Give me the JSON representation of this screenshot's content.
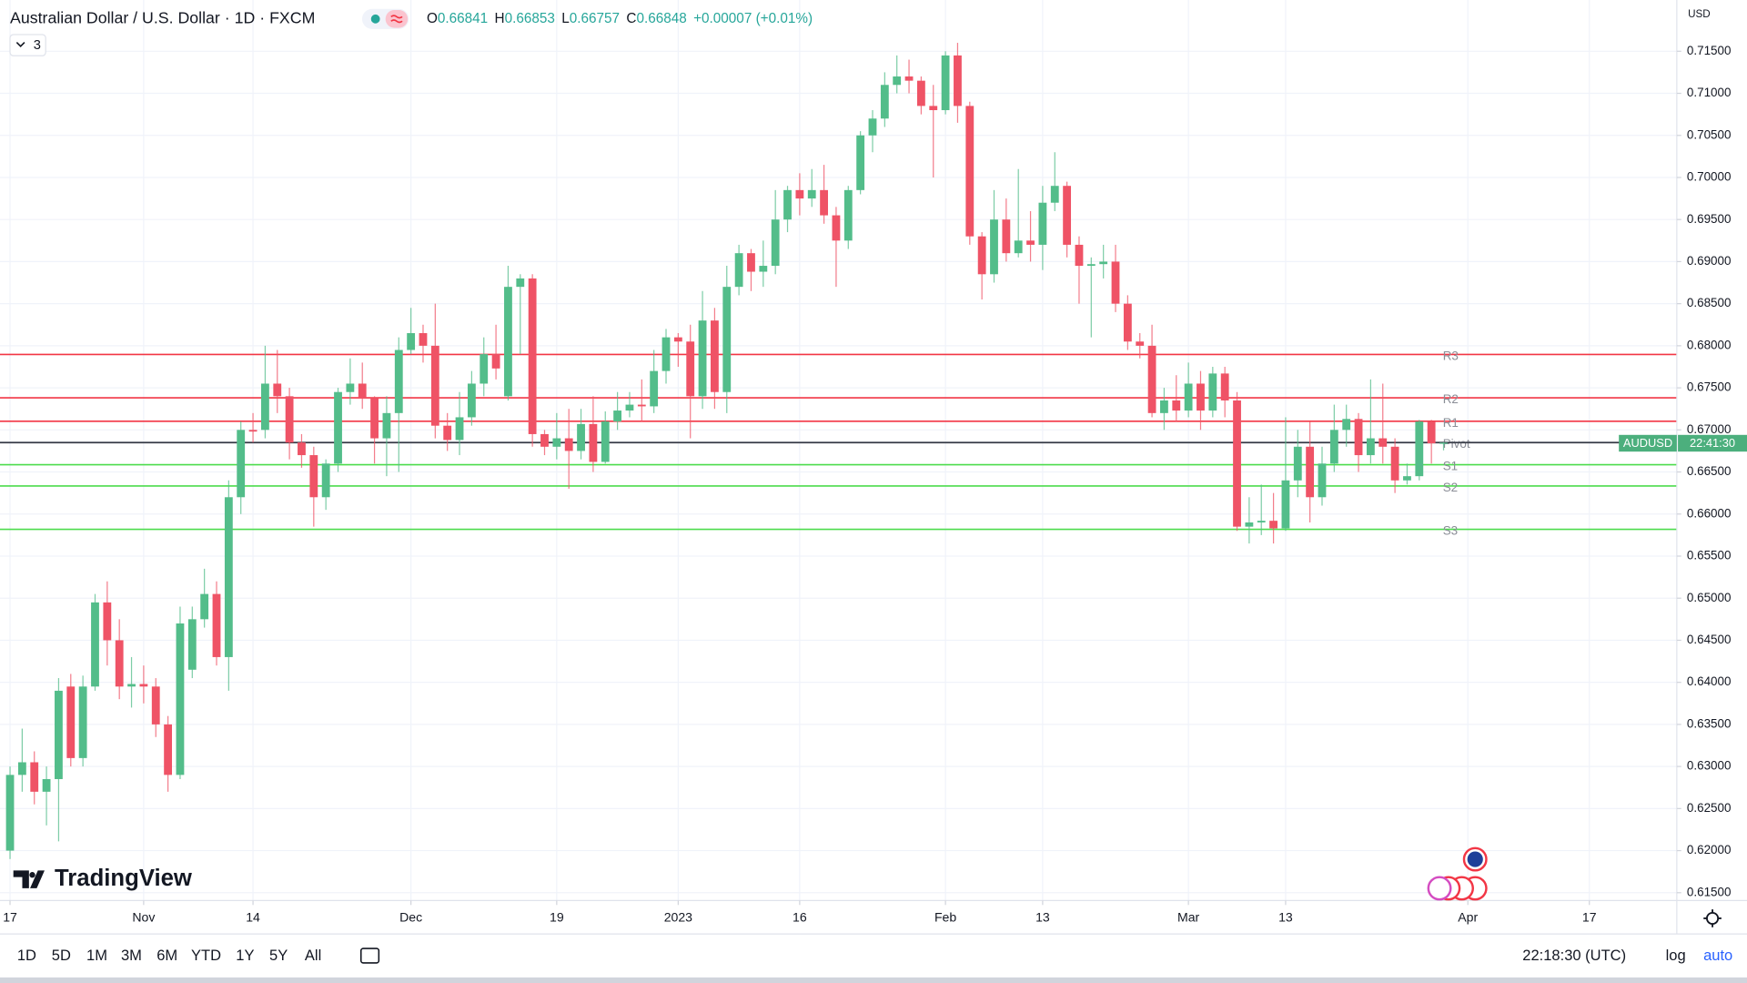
{
  "header": {
    "title": "Australian Dollar / U.S. Dollar · 1D · FXCM",
    "ohlc": [
      {
        "key": "O",
        "value": "0.66841"
      },
      {
        "key": "H",
        "value": "0.66853"
      },
      {
        "key": "L",
        "value": "0.66757"
      },
      {
        "key": "C",
        "value": "0.66848"
      }
    ],
    "change": "+0.00007 (+0.01%)",
    "indicators": "3"
  },
  "brand": "TradingView",
  "chart_data": {
    "type": "candlestick",
    "open": [
      0.62,
      0.629,
      0.6305,
      0.627,
      0.6285,
      0.6395,
      0.631,
      0.6395,
      0.6495,
      0.645,
      0.6395,
      0.6398,
      0.6395,
      0.635,
      0.629,
      0.6415,
      0.6475,
      0.6505,
      0.643,
      0.662,
      0.67,
      0.67,
      0.6755,
      0.674,
      0.6685,
      0.667,
      0.662,
      0.666,
      0.6745,
      0.6755,
      0.6738,
      0.669,
      0.672,
      0.6795,
      0.6815,
      0.68,
      0.6705,
      0.6688,
      0.6715,
      0.6755,
      0.679,
      0.674,
      0.687,
      0.688,
      0.6695,
      0.668,
      0.669,
      0.6675,
      0.6707,
      0.6662,
      0.671,
      0.6723,
      0.673,
      0.6728,
      0.677,
      0.681,
      0.6805,
      0.674,
      0.683,
      0.6745,
      0.687,
      0.691,
      0.6888,
      0.6895,
      0.695,
      0.6985,
      0.6975,
      0.6985,
      0.6955,
      0.6925,
      0.6985,
      0.705,
      0.707,
      0.711,
      0.712,
      0.7115,
      0.7085,
      0.708,
      0.7145,
      0.7085,
      0.693,
      0.6885,
      0.695,
      0.691,
      0.6925,
      0.692,
      0.697,
      0.699,
      0.692,
      0.6895,
      0.6897,
      0.69,
      0.685,
      0.6805,
      0.68,
      0.672,
      0.6735,
      0.6723,
      0.6755,
      0.6723,
      0.6767,
      0.6735,
      0.6585,
      0.659,
      0.6592,
      0.6583,
      0.664,
      0.668,
      0.662,
      0.666,
      0.67,
      0.6713,
      0.667,
      0.669,
      0.668,
      0.664,
      0.6645,
      0.671,
      0.66841
    ],
    "high": [
      0.63,
      0.6345,
      0.6318,
      0.63,
      0.6405,
      0.641,
      0.6408,
      0.6505,
      0.652,
      0.6475,
      0.643,
      0.642,
      0.6405,
      0.636,
      0.649,
      0.649,
      0.6535,
      0.652,
      0.664,
      0.671,
      0.672,
      0.68,
      0.6795,
      0.675,
      0.6695,
      0.668,
      0.6665,
      0.675,
      0.6785,
      0.678,
      0.674,
      0.674,
      0.681,
      0.6845,
      0.6825,
      0.685,
      0.672,
      0.6745,
      0.677,
      0.681,
      0.6825,
      0.6895,
      0.6885,
      0.6885,
      0.67,
      0.672,
      0.6725,
      0.6725,
      0.674,
      0.6722,
      0.6745,
      0.6745,
      0.676,
      0.6795,
      0.682,
      0.6815,
      0.6825,
      0.6865,
      0.6845,
      0.6895,
      0.692,
      0.6915,
      0.6925,
      0.6985,
      0.699,
      0.7005,
      0.701,
      0.7015,
      0.6965,
      0.699,
      0.7055,
      0.708,
      0.7125,
      0.7145,
      0.714,
      0.712,
      0.711,
      0.715,
      0.716,
      0.709,
      0.6935,
      0.6985,
      0.6975,
      0.701,
      0.696,
      0.699,
      0.703,
      0.6995,
      0.693,
      0.6905,
      0.692,
      0.692,
      0.686,
      0.6815,
      0.6825,
      0.675,
      0.6765,
      0.678,
      0.677,
      0.6775,
      0.6775,
      0.6745,
      0.662,
      0.6635,
      0.6625,
      0.6715,
      0.67,
      0.671,
      0.668,
      0.673,
      0.673,
      0.672,
      0.676,
      0.6755,
      0.669,
      0.666,
      0.6712,
      0.6712,
      0.66853
    ],
    "low": [
      0.619,
      0.627,
      0.6255,
      0.623,
      0.6211,
      0.63,
      0.63,
      0.639,
      0.642,
      0.638,
      0.637,
      0.6375,
      0.6335,
      0.627,
      0.6285,
      0.6405,
      0.6465,
      0.642,
      0.639,
      0.66,
      0.6685,
      0.669,
      0.672,
      0.6665,
      0.6655,
      0.6585,
      0.6605,
      0.665,
      0.673,
      0.6725,
      0.666,
      0.6645,
      0.665,
      0.679,
      0.678,
      0.669,
      0.6675,
      0.667,
      0.6705,
      0.674,
      0.676,
      0.6735,
      0.679,
      0.668,
      0.667,
      0.6665,
      0.663,
      0.6665,
      0.665,
      0.666,
      0.67,
      0.6715,
      0.671,
      0.672,
      0.6755,
      0.6775,
      0.669,
      0.6725,
      0.6725,
      0.672,
      0.686,
      0.6865,
      0.687,
      0.6885,
      0.6935,
      0.6955,
      0.6965,
      0.6945,
      0.687,
      0.6915,
      0.698,
      0.703,
      0.706,
      0.71,
      0.71,
      0.7075,
      0.7,
      0.7075,
      0.7065,
      0.692,
      0.6855,
      0.6875,
      0.69,
      0.6905,
      0.69,
      0.689,
      0.696,
      0.6905,
      0.685,
      0.681,
      0.688,
      0.684,
      0.6795,
      0.6785,
      0.6715,
      0.67,
      0.671,
      0.6715,
      0.67,
      0.6715,
      0.6715,
      0.658,
      0.6565,
      0.6575,
      0.6565,
      0.658,
      0.662,
      0.659,
      0.661,
      0.665,
      0.668,
      0.665,
      0.666,
      0.666,
      0.6625,
      0.6635,
      0.664,
      0.666,
      0.66757
    ],
    "close": [
      0.629,
      0.6305,
      0.627,
      0.6285,
      0.639,
      0.631,
      0.6395,
      0.6495,
      0.645,
      0.6395,
      0.6398,
      0.6395,
      0.635,
      0.629,
      0.647,
      0.6475,
      0.6505,
      0.643,
      0.662,
      0.67,
      0.6698,
      0.6755,
      0.674,
      0.6685,
      0.667,
      0.662,
      0.666,
      0.6745,
      0.6755,
      0.6738,
      0.669,
      0.672,
      0.6795,
      0.6815,
      0.68,
      0.6705,
      0.6688,
      0.6715,
      0.6755,
      0.679,
      0.6773,
      0.687,
      0.688,
      0.6695,
      0.668,
      0.669,
      0.6675,
      0.6707,
      0.6662,
      0.671,
      0.6723,
      0.673,
      0.6728,
      0.677,
      0.681,
      0.6805,
      0.674,
      0.683,
      0.6745,
      0.687,
      0.691,
      0.6888,
      0.6895,
      0.695,
      0.6985,
      0.6975,
      0.6985,
      0.6955,
      0.6925,
      0.6985,
      0.705,
      0.707,
      0.711,
      0.712,
      0.7115,
      0.7085,
      0.708,
      0.7145,
      0.7085,
      0.693,
      0.6885,
      0.695,
      0.691,
      0.6925,
      0.692,
      0.697,
      0.699,
      0.692,
      0.6895,
      0.6897,
      0.69,
      0.685,
      0.6805,
      0.68,
      0.672,
      0.6735,
      0.6723,
      0.6755,
      0.6723,
      0.6767,
      0.6735,
      0.6585,
      0.659,
      0.6592,
      0.6583,
      0.664,
      0.668,
      0.662,
      0.666,
      0.67,
      0.6713,
      0.667,
      0.669,
      0.668,
      0.664,
      0.6645,
      0.671,
      0.6684,
      0.66848
    ],
    "up_color": "#53bd8a",
    "down_color": "#ef5366",
    "xlim": [
      -0.826,
      137.2
    ],
    "xticks": [
      {
        "value": 0,
        "label": "17"
      },
      {
        "value": 11,
        "label": "Nov"
      },
      {
        "value": 20,
        "label": "14"
      },
      {
        "value": 33,
        "label": "Dec"
      },
      {
        "value": 45,
        "label": "19"
      },
      {
        "value": 55,
        "label": "2023"
      },
      {
        "value": 65,
        "label": "16"
      },
      {
        "value": 77,
        "label": "Feb"
      },
      {
        "value": 85,
        "label": "13"
      },
      {
        "value": 97,
        "label": "Mar"
      },
      {
        "value": 105,
        "label": "13"
      },
      {
        "value": 120,
        "label": "Apr"
      },
      {
        "value": 130,
        "label": "17"
      }
    ],
    "ylim": [
      0.61407,
      0.72109
    ],
    "yticks": [
      {
        "value": 0.615,
        "label": "0.61500"
      },
      {
        "value": 0.62,
        "label": "0.62000"
      },
      {
        "value": 0.625,
        "label": "0.62500"
      },
      {
        "value": 0.63,
        "label": "0.63000"
      },
      {
        "value": 0.635,
        "label": "0.63500"
      },
      {
        "value": 0.64,
        "label": "0.64000"
      },
      {
        "value": 0.645,
        "label": "0.64500"
      },
      {
        "value": 0.65,
        "label": "0.65000"
      },
      {
        "value": 0.655,
        "label": "0.65500"
      },
      {
        "value": 0.66,
        "label": "0.66000"
      },
      {
        "value": 0.665,
        "label": "0.66500"
      },
      {
        "value": 0.67,
        "label": "0.67000"
      },
      {
        "value": 0.675,
        "label": "0.67500"
      },
      {
        "value": 0.68,
        "label": "0.68000"
      },
      {
        "value": 0.685,
        "label": "0.68500"
      },
      {
        "value": 0.69,
        "label": "0.69000"
      },
      {
        "value": 0.695,
        "label": "0.69500"
      },
      {
        "value": 0.7,
        "label": "0.70000"
      },
      {
        "value": 0.705,
        "label": "0.70500"
      },
      {
        "value": 0.71,
        "label": "0.71000"
      },
      {
        "value": 0.715,
        "label": "0.71500"
      }
    ],
    "grid": true,
    "currency": "USD",
    "levels": [
      {
        "name": "R3",
        "value": 0.67897,
        "color": "#f23645"
      },
      {
        "name": "R2",
        "value": 0.67381,
        "color": "#f23645"
      },
      {
        "name": "R1",
        "value": 0.67103,
        "color": "#f23645"
      },
      {
        "name": "Pivot",
        "value": 0.66851,
        "color": "#787b86"
      },
      {
        "name": "S1",
        "value": 0.66586,
        "color": "#4cdc4c"
      },
      {
        "name": "S2",
        "value": 0.66334,
        "color": "#4cdc4c"
      },
      {
        "name": "S3",
        "value": 0.65818,
        "color": "#4cdc4c"
      }
    ],
    "price_line": {
      "label": "AUDUSD",
      "value": 0.66848,
      "countdown": "22:41:30",
      "color": "#4caf7d"
    }
  },
  "toolbar": {
    "ranges": [
      "1D",
      "5D",
      "1M",
      "3M",
      "6M",
      "YTD",
      "1Y",
      "5Y",
      "All"
    ],
    "time": "22:18:30 (UTC)",
    "log": "log",
    "auto": "auto"
  }
}
